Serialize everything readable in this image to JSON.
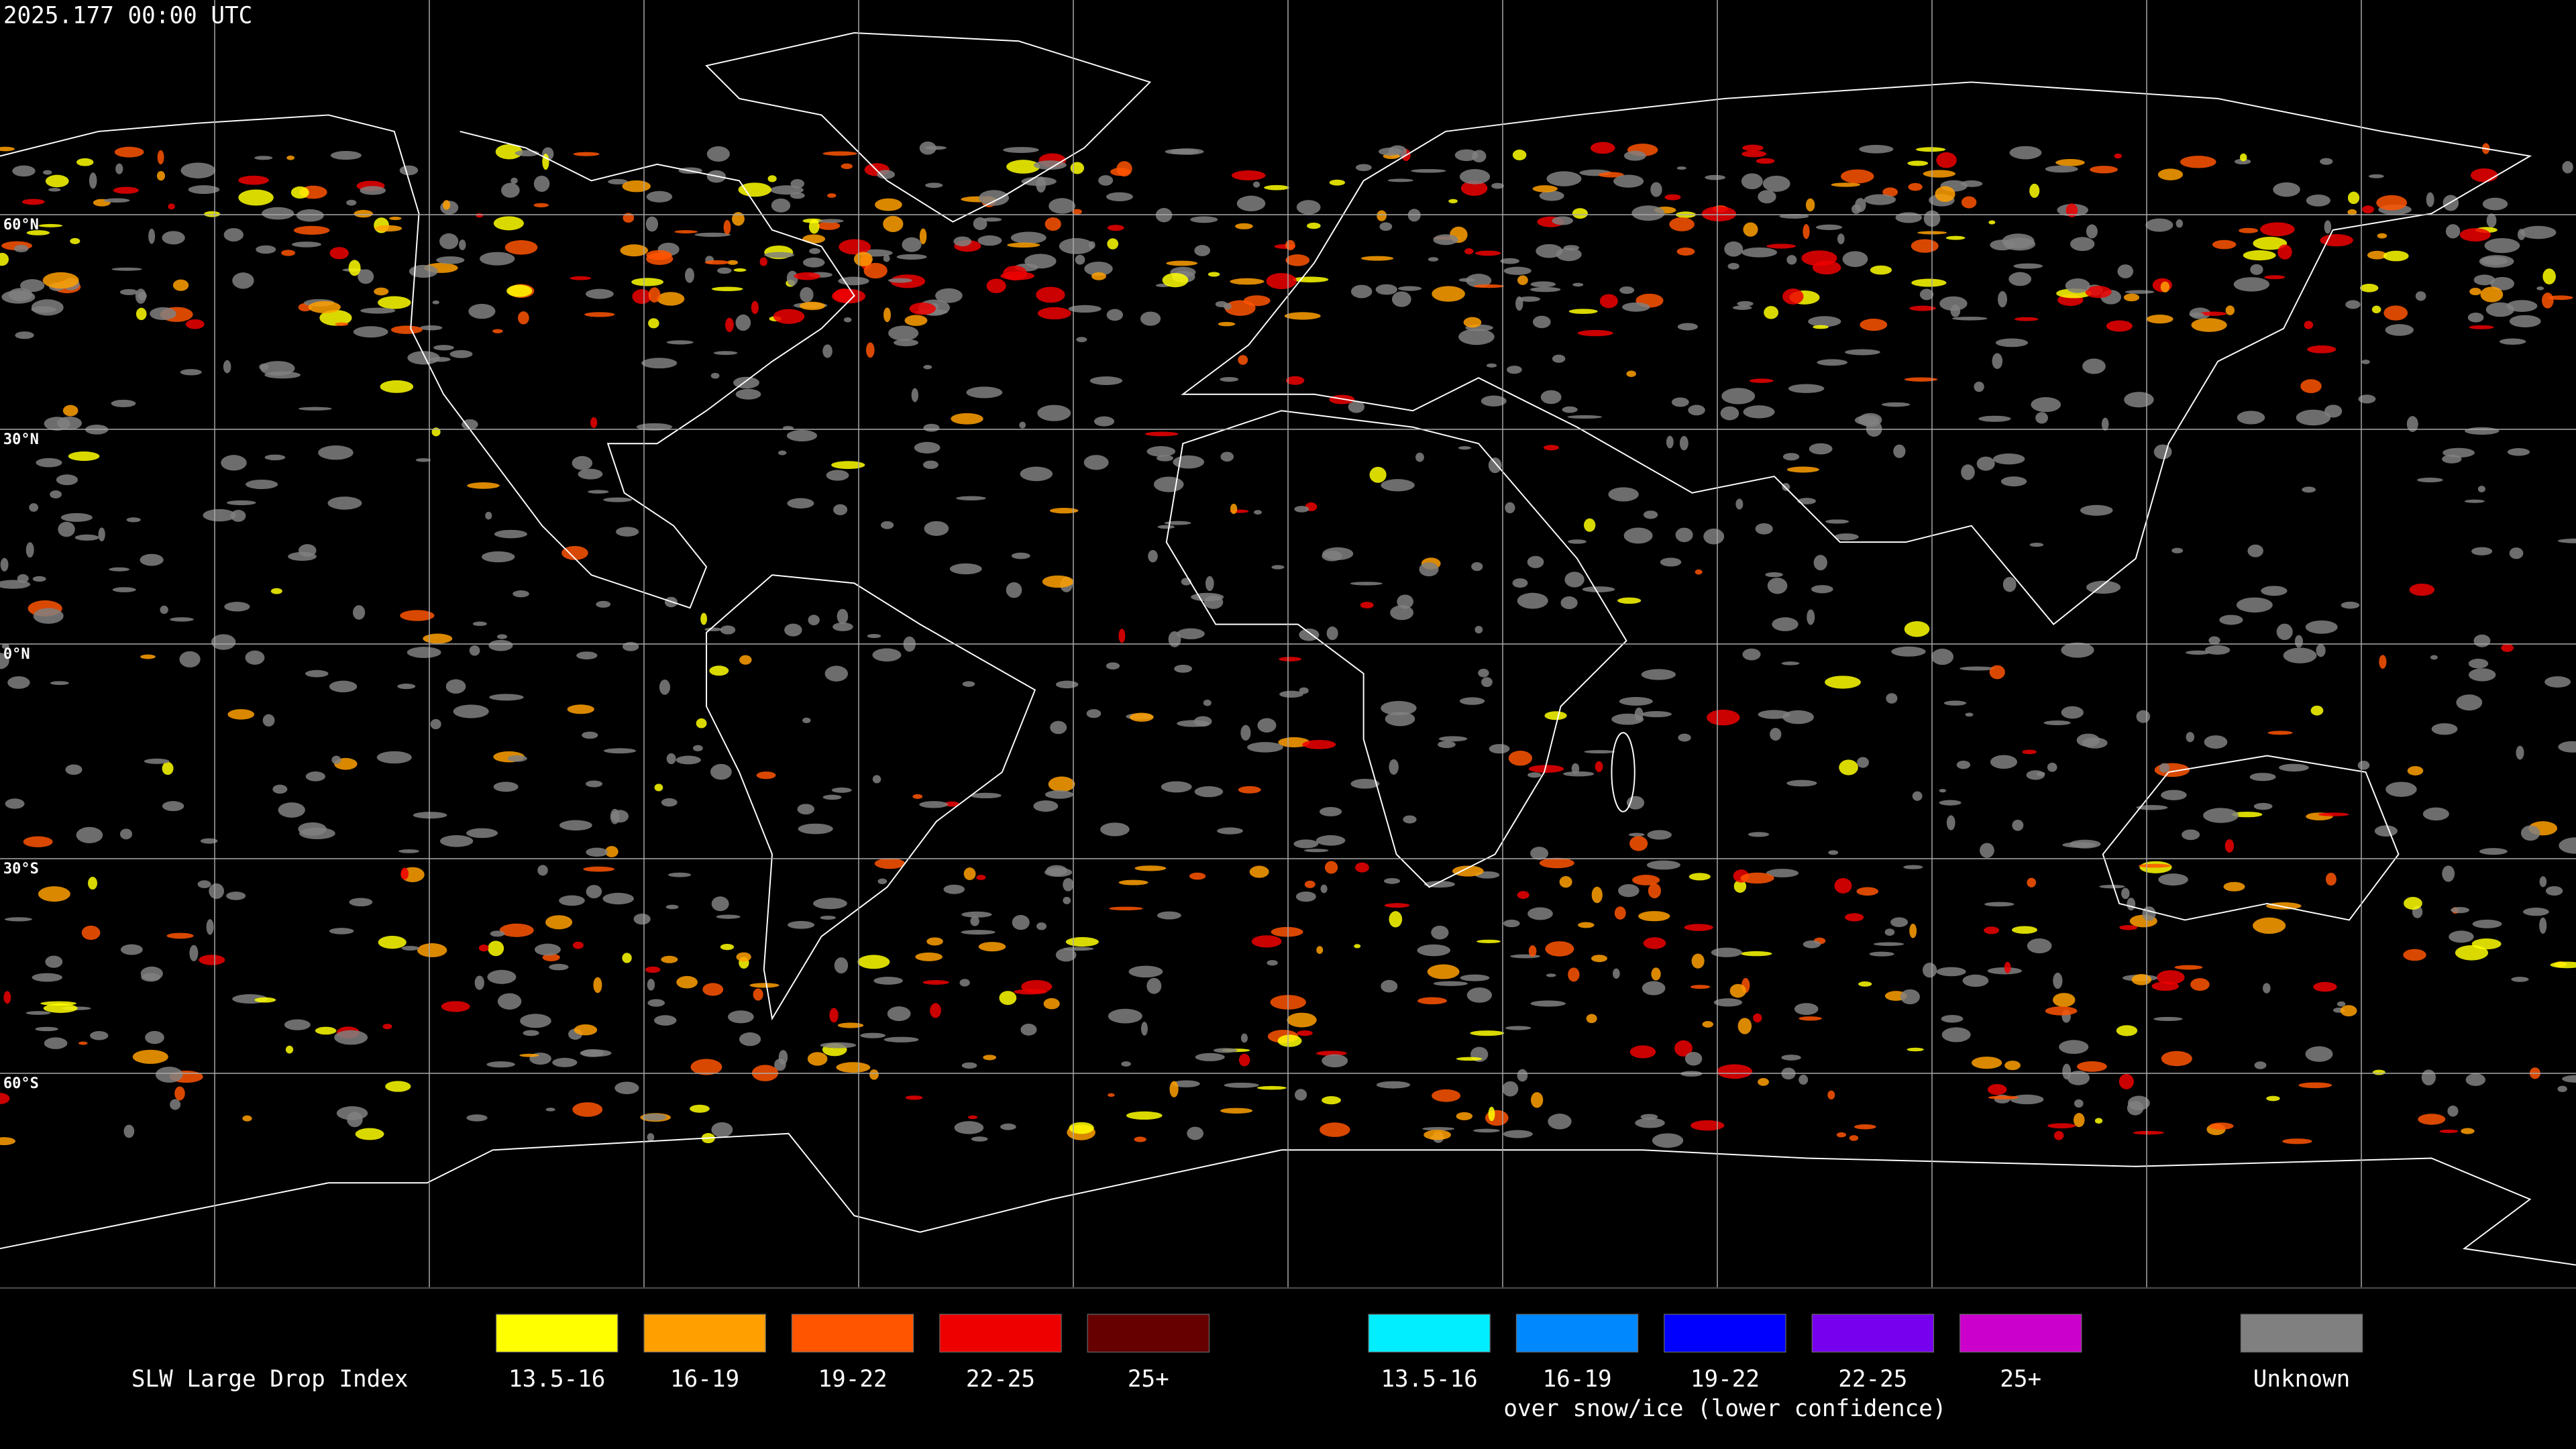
{
  "header": {
    "timestamp": "2025.177 00:00 UTC"
  },
  "lat_labels": [
    "60°N",
    "30°N",
    "0°N",
    "30°S",
    "60°S"
  ],
  "legend": {
    "title": "SLW Large Drop Index",
    "items": [
      {
        "label": "13.5-16",
        "color": "#ffff00"
      },
      {
        "label": "16-19",
        "color": "#ffa000"
      },
      {
        "label": "19-22",
        "color": "#ff5500"
      },
      {
        "label": "22-25",
        "color": "#ee0000"
      },
      {
        "label": "25+",
        "color": "#660000"
      }
    ],
    "snow_items": [
      {
        "label": "13.5-16",
        "color": "#00eeff"
      },
      {
        "label": "16-19",
        "color": "#0088ff"
      },
      {
        "label": "19-22",
        "color": "#0000ff"
      },
      {
        "label": "22-25",
        "color": "#7700ee"
      },
      {
        "label": "25+",
        "color": "#cc00cc"
      }
    ],
    "snow_caption": "over snow/ice (lower confidence)",
    "unknown": {
      "label": "Unknown",
      "color": "#808080"
    }
  }
}
